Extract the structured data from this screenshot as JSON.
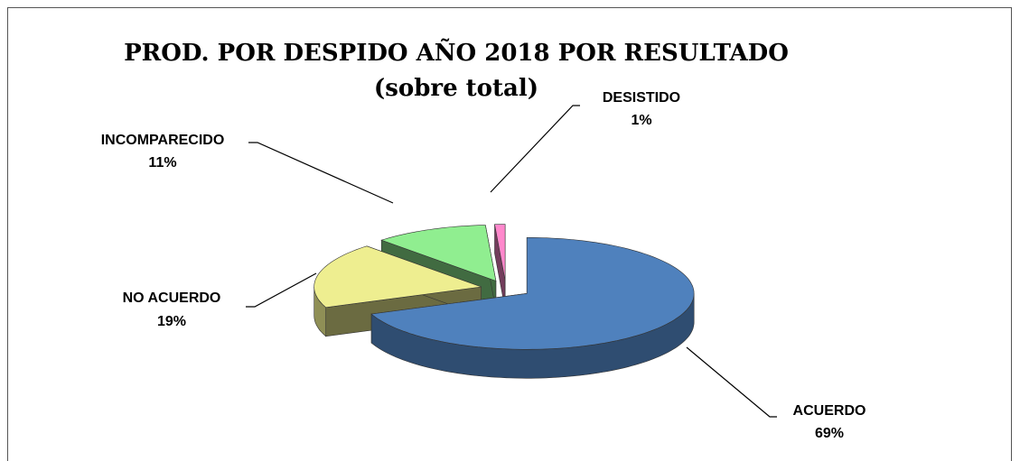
{
  "chart_data": {
    "type": "pie",
    "title": "PROD. POR DESPIDO AÑO 2018 POR RESULTADO",
    "subtitle": "(sobre total)",
    "categories": [
      "ACUERDO",
      "NO ACUERDO",
      "INCOMPARECIDO",
      "DESISTIDO"
    ],
    "values": [
      69,
      19,
      11,
      1
    ],
    "value_labels": [
      "69%",
      "19%",
      "11%",
      "1%"
    ],
    "colors": [
      "#4f81bd",
      "#eeee90",
      "#90ee90",
      "#ff88cc"
    ]
  }
}
